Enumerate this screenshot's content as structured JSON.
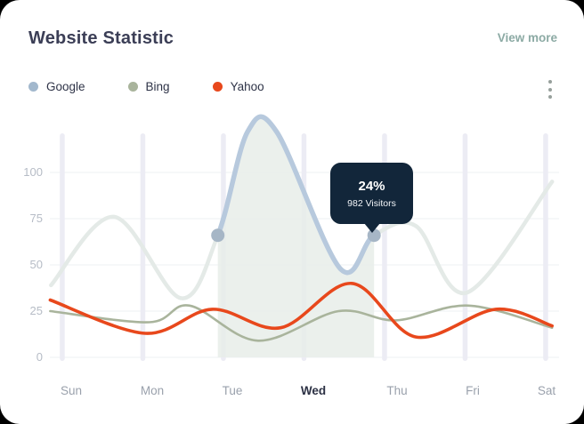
{
  "header": {
    "title": "Website Statistic",
    "view_more_label": "View more"
  },
  "legend": [
    {
      "label": "Google",
      "color": "#a2b8cd"
    },
    {
      "label": "Bing",
      "color": "#a9b49c"
    },
    {
      "label": "Yahoo",
      "color": "#e8481c"
    }
  ],
  "menu_icon": "kebab-menu",
  "tooltip": {
    "percent": "24%",
    "visitors": "982 Visitors"
  },
  "chart_data": {
    "type": "line",
    "title": "Website Statistic",
    "categories": [
      "Sun",
      "Mon",
      "Tue",
      "Wed",
      "Thu",
      "Fri",
      "Sat"
    ],
    "active_category": "Wed",
    "y_ticks": [
      0,
      25,
      50,
      75,
      100
    ],
    "ylim": [
      0,
      125
    ],
    "grid": "horizontal-lines-and-vertical-day-bars",
    "legend_position": "top-left",
    "x_unit": "day-index (fractional positions between labeled days)",
    "series": [
      {
        "name": "Google",
        "color": "#b7c9dd",
        "muted_color": "#e4eae7",
        "points": [
          [
            -0.14,
            39
          ],
          [
            0.64,
            76
          ],
          [
            1.47,
            32
          ],
          [
            1.93,
            66
          ],
          [
            2.3,
            122
          ],
          [
            2.66,
            122
          ],
          [
            3.45,
            48
          ],
          [
            3.87,
            66
          ],
          [
            4.39,
            71
          ],
          [
            5.02,
            35
          ],
          [
            6.08,
            95
          ]
        ]
      },
      {
        "name": "Bing",
        "color": "#a9b49c",
        "points": [
          [
            -0.15,
            25
          ],
          [
            1.08,
            19
          ],
          [
            1.58,
            28
          ],
          [
            2.43,
            9
          ],
          [
            3.43,
            25
          ],
          [
            4.14,
            20
          ],
          [
            5.04,
            28
          ],
          [
            6.08,
            16
          ]
        ]
      },
      {
        "name": "Yahoo",
        "color": "#e8481c",
        "points": [
          [
            -0.15,
            31
          ],
          [
            1.03,
            13
          ],
          [
            1.86,
            26
          ],
          [
            2.71,
            16
          ],
          [
            3.59,
            40
          ],
          [
            4.39,
            11
          ],
          [
            5.38,
            26
          ],
          [
            6.08,
            17
          ]
        ]
      }
    ],
    "highlight": {
      "series": "Google",
      "from_point": 3,
      "to_point": 7,
      "fill_color": "#e8ede9",
      "dot_color": "#a6b6c6",
      "tooltip_value": "24%",
      "tooltip_label": "982 Visitors"
    }
  }
}
